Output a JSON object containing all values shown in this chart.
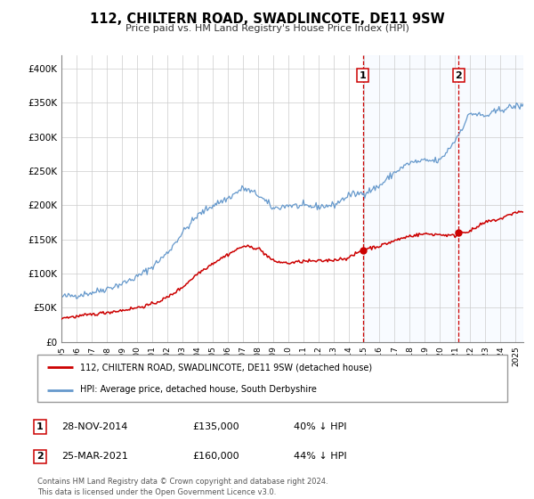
{
  "title": "112, CHILTERN ROAD, SWADLINCOTE, DE11 9SW",
  "subtitle": "Price paid vs. HM Land Registry's House Price Index (HPI)",
  "legend_line1": "112, CHILTERN ROAD, SWADLINCOTE, DE11 9SW (detached house)",
  "legend_line2": "HPI: Average price, detached house, South Derbyshire",
  "footnote1": "Contains HM Land Registry data © Crown copyright and database right 2024.",
  "footnote2": "This data is licensed under the Open Government Licence v3.0.",
  "transaction1_date": "28-NOV-2014",
  "transaction1_price": "£135,000",
  "transaction1_hpi": "40% ↓ HPI",
  "transaction2_date": "25-MAR-2021",
  "transaction2_price": "£160,000",
  "transaction2_hpi": "44% ↓ HPI",
  "hpi_color": "#6699cc",
  "price_color": "#cc0000",
  "vline_color": "#cc0000",
  "dot_color": "#cc0000",
  "shade_color": "#ddeeff",
  "marker1_x": 2014.91,
  "marker2_x": 2021.23,
  "marker1_y": 135000,
  "marker2_y": 160000,
  "xlim_left": 1995.0,
  "xlim_right": 2025.5,
  "ylim_bottom": 0,
  "ylim_top": 420000,
  "yticks": [
    0,
    50000,
    100000,
    150000,
    200000,
    250000,
    300000,
    350000,
    400000
  ],
  "ytick_labels": [
    "£0",
    "£50K",
    "£100K",
    "£150K",
    "£200K",
    "£250K",
    "£300K",
    "£350K",
    "£400K"
  ],
  "xticks": [
    1995,
    1996,
    1997,
    1998,
    1999,
    2000,
    2001,
    2002,
    2003,
    2004,
    2005,
    2006,
    2007,
    2008,
    2009,
    2010,
    2011,
    2012,
    2013,
    2014,
    2015,
    2016,
    2017,
    2018,
    2019,
    2020,
    2021,
    2022,
    2023,
    2024,
    2025
  ]
}
